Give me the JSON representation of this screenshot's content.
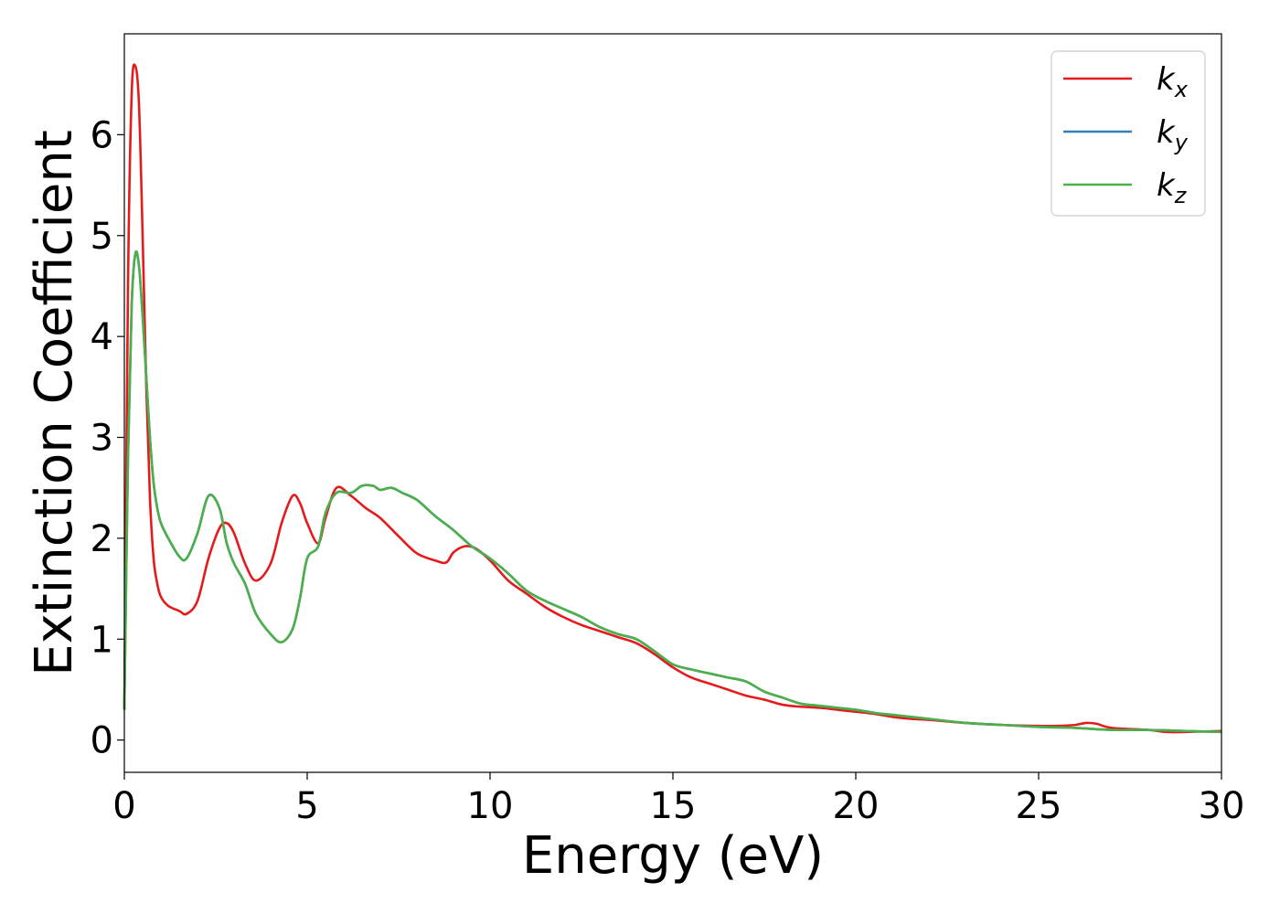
{
  "chart_data": {
    "type": "line",
    "xlabel": "Energy (eV)",
    "ylabel": "Extinction Coefficient",
    "xlim": [
      0,
      30
    ],
    "ylim": [
      -0.32,
      7.0
    ],
    "xticks": [
      0,
      5,
      10,
      15,
      20,
      25,
      30
    ],
    "yticks": [
      0,
      1,
      2,
      3,
      4,
      5,
      6
    ],
    "grid": false,
    "legend_placement": "upper right",
    "series": [
      {
        "name": "k",
        "subscript": "x",
        "color": "#e41a1c",
        "x": [
          0,
          0.1,
          0.2,
          0.3,
          0.4,
          0.5,
          0.6,
          0.7,
          0.8,
          0.9,
          1.0,
          1.2,
          1.5,
          1.7,
          2.0,
          2.3,
          2.6,
          2.8,
          3.0,
          3.3,
          3.6,
          4.0,
          4.3,
          4.6,
          4.8,
          5.0,
          5.3,
          5.5,
          5.8,
          6.2,
          6.6,
          7.0,
          7.5,
          8.0,
          8.5,
          8.8,
          9.0,
          9.3,
          9.6,
          10.0,
          10.5,
          11.0,
          11.5,
          12.0,
          12.5,
          13.0,
          13.5,
          14.0,
          14.5,
          15.0,
          15.5,
          16.0,
          16.5,
          17.0,
          17.5,
          18.0,
          18.5,
          19.0,
          19.5,
          20.0,
          20.5,
          21.0,
          21.5,
          22.0,
          23.0,
          24.0,
          25.0,
          25.5,
          26.0,
          26.3,
          26.6,
          27.0,
          28.0,
          28.5,
          29.0,
          30.0
        ],
        "y": [
          0.3,
          4.5,
          6.4,
          6.68,
          6.3,
          5.0,
          3.5,
          2.4,
          1.8,
          1.55,
          1.42,
          1.33,
          1.28,
          1.25,
          1.38,
          1.8,
          2.1,
          2.15,
          2.05,
          1.75,
          1.58,
          1.75,
          2.15,
          2.42,
          2.35,
          2.15,
          1.95,
          2.2,
          2.5,
          2.42,
          2.3,
          2.2,
          2.02,
          1.85,
          1.78,
          1.76,
          1.86,
          1.92,
          1.9,
          1.78,
          1.58,
          1.45,
          1.32,
          1.22,
          1.14,
          1.08,
          1.02,
          0.96,
          0.85,
          0.72,
          0.62,
          0.56,
          0.5,
          0.44,
          0.4,
          0.35,
          0.33,
          0.32,
          0.3,
          0.28,
          0.26,
          0.23,
          0.21,
          0.2,
          0.17,
          0.15,
          0.14,
          0.14,
          0.15,
          0.17,
          0.16,
          0.12,
          0.1,
          0.08,
          0.08,
          0.09
        ]
      },
      {
        "name": "k",
        "subscript": "y",
        "color": "#377eb8",
        "x": [
          0,
          0.1,
          0.2,
          0.3,
          0.4,
          0.5,
          0.6,
          0.7,
          0.8,
          0.9,
          1.0,
          1.2,
          1.5,
          1.7,
          2.0,
          2.3,
          2.6,
          2.8,
          3.0,
          3.3,
          3.6,
          4.0,
          4.3,
          4.6,
          4.8,
          5.0,
          5.3,
          5.5,
          5.8,
          6.2,
          6.5,
          6.8,
          7.0,
          7.3,
          7.6,
          8.0,
          8.5,
          9.0,
          9.5,
          10.0,
          10.5,
          11.0,
          11.5,
          12.0,
          12.5,
          13.0,
          13.5,
          14.0,
          14.5,
          15.0,
          15.5,
          16.0,
          16.5,
          17.0,
          17.5,
          18.0,
          18.5,
          19.0,
          19.5,
          20.0,
          20.5,
          21.0,
          21.5,
          22.0,
          23.0,
          24.0,
          25.0,
          26.0,
          27.0,
          28.0,
          29.0,
          30.0
        ],
        "y": [
          0.3,
          2.8,
          4.3,
          4.82,
          4.7,
          4.2,
          3.6,
          3.0,
          2.55,
          2.3,
          2.15,
          2.0,
          1.82,
          1.8,
          2.05,
          2.42,
          2.3,
          1.95,
          1.75,
          1.55,
          1.25,
          1.05,
          0.97,
          1.1,
          1.4,
          1.8,
          1.92,
          2.25,
          2.45,
          2.45,
          2.52,
          2.52,
          2.48,
          2.5,
          2.45,
          2.38,
          2.22,
          2.08,
          1.92,
          1.8,
          1.65,
          1.48,
          1.38,
          1.3,
          1.22,
          1.12,
          1.05,
          1.0,
          0.88,
          0.75,
          0.7,
          0.66,
          0.62,
          0.58,
          0.48,
          0.42,
          0.36,
          0.34,
          0.32,
          0.3,
          0.27,
          0.25,
          0.23,
          0.21,
          0.17,
          0.15,
          0.13,
          0.12,
          0.1,
          0.1,
          0.09,
          0.08
        ]
      },
      {
        "name": "k",
        "subscript": "z",
        "color": "#4daf4a",
        "x": [
          0,
          0.1,
          0.2,
          0.3,
          0.4,
          0.5,
          0.6,
          0.7,
          0.8,
          0.9,
          1.0,
          1.2,
          1.5,
          1.7,
          2.0,
          2.3,
          2.6,
          2.8,
          3.0,
          3.3,
          3.6,
          4.0,
          4.3,
          4.6,
          4.8,
          5.0,
          5.3,
          5.5,
          5.8,
          6.2,
          6.5,
          6.8,
          7.0,
          7.3,
          7.6,
          8.0,
          8.5,
          9.0,
          9.5,
          10.0,
          10.5,
          11.0,
          11.5,
          12.0,
          12.5,
          13.0,
          13.5,
          14.0,
          14.5,
          15.0,
          15.5,
          16.0,
          16.5,
          17.0,
          17.5,
          18.0,
          18.5,
          19.0,
          19.5,
          20.0,
          20.5,
          21.0,
          21.5,
          22.0,
          23.0,
          24.0,
          25.0,
          26.0,
          27.0,
          28.0,
          29.0,
          30.0
        ],
        "y": [
          0.3,
          2.8,
          4.3,
          4.82,
          4.7,
          4.2,
          3.6,
          3.0,
          2.55,
          2.3,
          2.15,
          2.0,
          1.82,
          1.8,
          2.05,
          2.42,
          2.3,
          1.95,
          1.75,
          1.55,
          1.25,
          1.05,
          0.97,
          1.1,
          1.4,
          1.8,
          1.92,
          2.25,
          2.45,
          2.45,
          2.52,
          2.52,
          2.48,
          2.5,
          2.45,
          2.38,
          2.22,
          2.08,
          1.92,
          1.8,
          1.65,
          1.48,
          1.38,
          1.3,
          1.22,
          1.12,
          1.05,
          1.0,
          0.88,
          0.75,
          0.7,
          0.66,
          0.62,
          0.58,
          0.48,
          0.42,
          0.36,
          0.34,
          0.32,
          0.3,
          0.27,
          0.25,
          0.23,
          0.21,
          0.17,
          0.15,
          0.13,
          0.12,
          0.1,
          0.1,
          0.09,
          0.08
        ]
      }
    ]
  }
}
